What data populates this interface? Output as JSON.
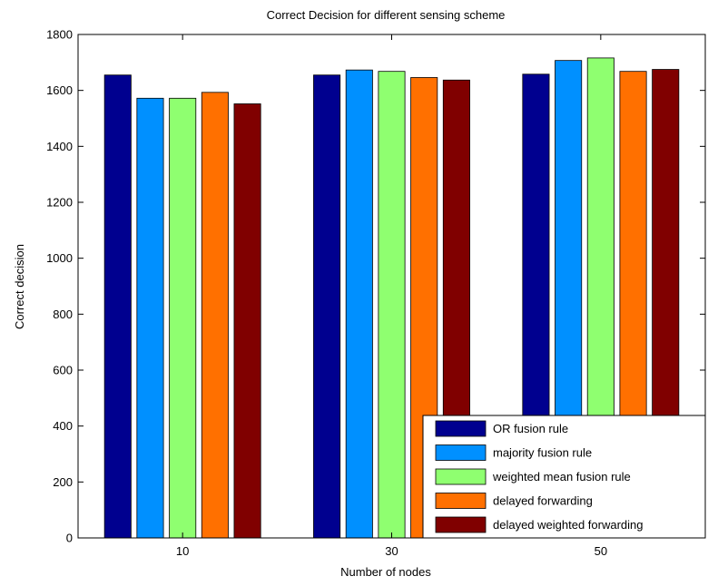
{
  "chart_data": {
    "type": "bar",
    "title": "Correct Decision for different sensing scheme",
    "xlabel": "Number of nodes",
    "ylabel": "Correct decision",
    "categories": [
      "10",
      "30",
      "50"
    ],
    "ylim": [
      0,
      1800
    ],
    "yticks": [
      0,
      200,
      400,
      600,
      800,
      1000,
      1200,
      1400,
      1600,
      1800
    ],
    "grid": false,
    "legend_position": "bottom-right",
    "series": [
      {
        "name": "OR fusion rule",
        "color": "#00008f",
        "values": [
          1655,
          1655,
          1658
        ]
      },
      {
        "name": "majority fusion rule",
        "color": "#0090ff",
        "values": [
          1572,
          1673,
          1707
        ]
      },
      {
        "name": "weighted mean fusion rule",
        "color": "#8fff70",
        "values": [
          1572,
          1668,
          1716
        ]
      },
      {
        "name": "delayed forwarding",
        "color": "#ff7000",
        "values": [
          1593,
          1646,
          1668
        ]
      },
      {
        "name": "delayed weighted forwarding",
        "color": "#800000",
        "values": [
          1552,
          1637,
          1675
        ]
      }
    ]
  }
}
